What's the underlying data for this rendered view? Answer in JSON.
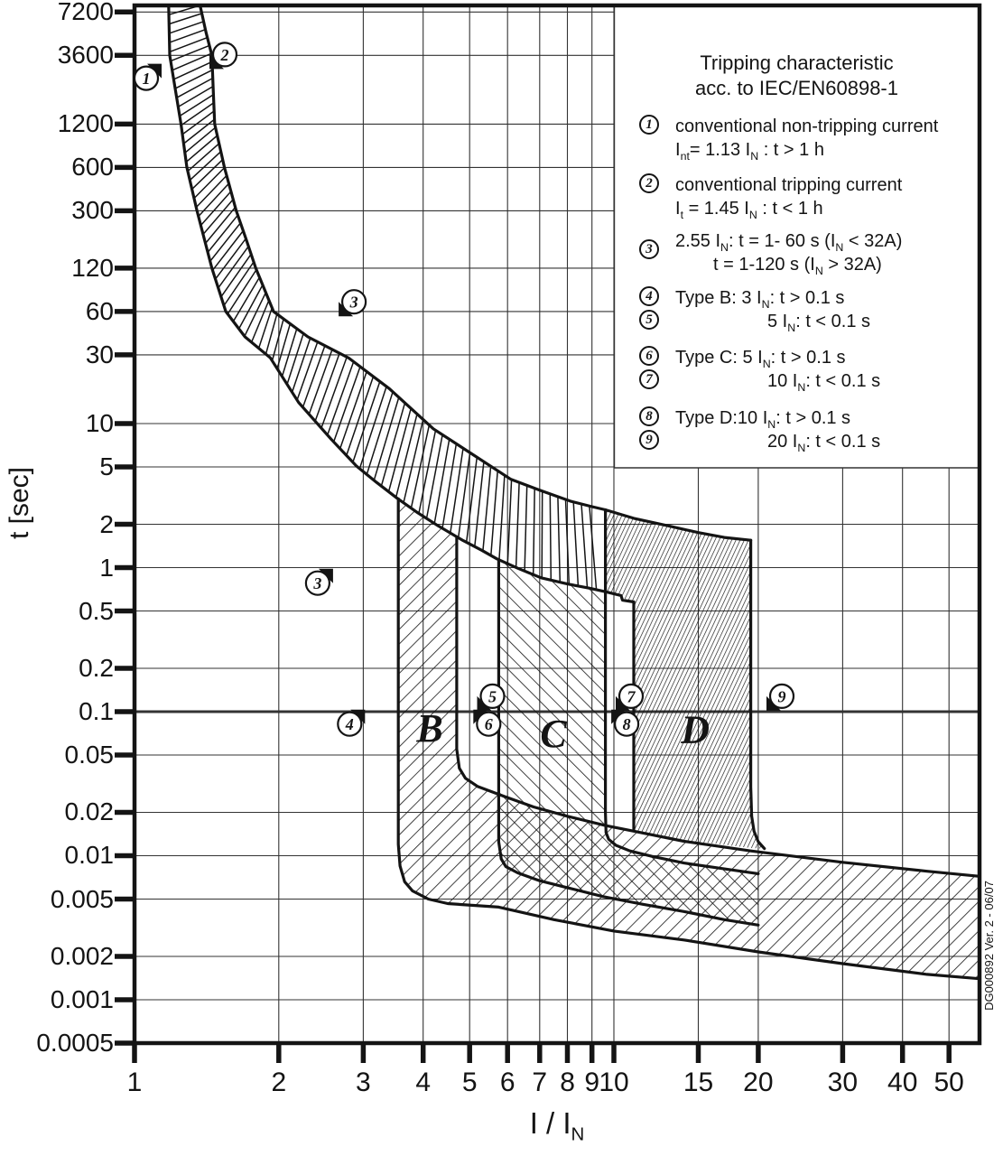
{
  "page": {
    "background": "#ffffff",
    "ink": "#141414",
    "grid_color": "#333333"
  },
  "chart_data": {
    "type": "line",
    "title": "Tripping characteristic acc. to IEC/EN60898-1",
    "xlabel": "I / I_{N}",
    "ylabel": "t [sec]",
    "x_scale": "log",
    "y_scale": "log",
    "x_range": [
      1,
      57.9
    ],
    "t_range": [
      0.0005,
      8000
    ],
    "grid": "on",
    "thick_hline_t": 0.1,
    "x_ticks": [
      {
        "label": "1",
        "v": 1
      },
      {
        "label": "2",
        "v": 2
      },
      {
        "label": "3",
        "v": 3
      },
      {
        "label": "4",
        "v": 4
      },
      {
        "label": "5",
        "v": 5
      },
      {
        "label": "6",
        "v": 6
      },
      {
        "label": "7",
        "v": 7
      },
      {
        "label": "8",
        "v": 8
      },
      {
        "label": "9",
        "v": 9
      },
      {
        "label": "10",
        "v": 10
      },
      {
        "label": "15",
        "v": 15
      },
      {
        "label": "20",
        "v": 20
      },
      {
        "label": "30",
        "v": 30
      },
      {
        "label": "40",
        "v": 40
      },
      {
        "label": "50",
        "v": 50
      }
    ],
    "y_ticks": [
      {
        "label": "7200",
        "v": 7200
      },
      {
        "label": "3600",
        "v": 3600
      },
      {
        "label": "1200",
        "v": 1200
      },
      {
        "label": "600",
        "v": 600
      },
      {
        "label": "300",
        "v": 300
      },
      {
        "label": "120",
        "v": 120
      },
      {
        "label": "60",
        "v": 60
      },
      {
        "label": "30",
        "v": 30
      },
      {
        "label": "10",
        "v": 10
      },
      {
        "label": "5",
        "v": 5
      },
      {
        "label": "2",
        "v": 2
      },
      {
        "label": "1",
        "v": 1
      },
      {
        "label": "0.5",
        "v": 0.5
      },
      {
        "label": "0.2",
        "v": 0.2
      },
      {
        "label": "0.1",
        "v": 0.1
      },
      {
        "label": "0.05",
        "v": 0.05
      },
      {
        "label": "0.02",
        "v": 0.02
      },
      {
        "label": "0.01",
        "v": 0.01
      },
      {
        "label": "0.005",
        "v": 0.005
      },
      {
        "label": "0.002",
        "v": 0.002
      },
      {
        "label": "0.001",
        "v": 0.001
      },
      {
        "label": "0.0005",
        "v": 0.0005
      }
    ],
    "series": {
      "upper_tripping_limit": [
        [
          1.37,
          8000
        ],
        [
          1.41,
          5200
        ],
        [
          1.45,
          3600
        ],
        [
          1.46,
          2000
        ],
        [
          1.47,
          1200
        ],
        [
          1.54,
          600
        ],
        [
          1.63,
          300
        ],
        [
          1.71,
          190
        ],
        [
          1.79,
          120
        ],
        [
          1.95,
          60
        ],
        [
          2.3,
          40
        ],
        [
          2.8,
          28.5
        ],
        [
          3.4,
          17.5
        ],
        [
          4.2,
          9.2
        ],
        [
          5.0,
          6.3
        ],
        [
          6.1,
          4.1
        ],
        [
          7.0,
          3.45
        ],
        [
          8.1,
          2.9
        ],
        [
          9.0,
          2.65
        ],
        [
          9.6,
          2.52
        ],
        [
          11,
          2.2
        ],
        [
          13,
          1.95
        ],
        [
          15,
          1.75
        ],
        [
          17,
          1.62
        ],
        [
          19.3,
          1.55
        ]
      ],
      "lower_tripping_limit": [
        [
          1.178,
          8000
        ],
        [
          1.184,
          3600
        ],
        [
          1.25,
          1200
        ],
        [
          1.286,
          600
        ],
        [
          1.35,
          300
        ],
        [
          1.45,
          120
        ],
        [
          1.55,
          60
        ],
        [
          1.7,
          40
        ],
        [
          1.92,
          28.6
        ],
        [
          2.2,
          14
        ],
        [
          2.57,
          7.8
        ],
        [
          2.9,
          5.1
        ],
        [
          3.2,
          3.9
        ],
        [
          3.53,
          3.03
        ],
        [
          3.9,
          2.4
        ],
        [
          4.3,
          1.95
        ],
        [
          4.85,
          1.54
        ],
        [
          5.3,
          1.32
        ],
        [
          5.7,
          1.15
        ],
        [
          6.3,
          0.99
        ],
        [
          7.05,
          0.85
        ],
        [
          8.0,
          0.77
        ],
        [
          8.9,
          0.72
        ],
        [
          9.6,
          0.68
        ],
        [
          10.35,
          0.64
        ],
        [
          10.42,
          0.595
        ],
        [
          11,
          0.578
        ]
      ],
      "b_min_edge": [
        [
          3.55,
          3.0
        ],
        [
          3.55,
          0.012
        ],
        [
          3.58,
          0.0085
        ],
        [
          3.66,
          0.0066
        ],
        [
          3.8,
          0.0057
        ],
        [
          4.1,
          0.005
        ],
        [
          4.5,
          0.00465
        ],
        [
          5.75,
          0.0044
        ],
        [
          7.5,
          0.0036
        ],
        [
          10,
          0.003
        ],
        [
          14,
          0.0026
        ],
        [
          20,
          0.00215
        ],
        [
          30,
          0.00178
        ],
        [
          45,
          0.0015
        ],
        [
          57.9,
          0.0014
        ]
      ],
      "b_max_edge": [
        [
          4.7,
          1.63
        ],
        [
          4.7,
          0.055
        ],
        [
          4.76,
          0.0405
        ],
        [
          4.9,
          0.0345
        ],
        [
          5.2,
          0.0302
        ],
        [
          5.9,
          0.0258
        ],
        [
          6.8,
          0.0218
        ],
        [
          8,
          0.0188
        ],
        [
          9.6,
          0.0162
        ],
        [
          11,
          0.0148
        ],
        [
          14,
          0.0126
        ],
        [
          19.3,
          0.0108
        ],
        [
          30,
          0.009
        ],
        [
          45,
          0.0078
        ],
        [
          57.9,
          0.0072
        ]
      ],
      "c_min_edge": [
        [
          5.75,
          1.14
        ],
        [
          5.75,
          0.0125
        ],
        [
          5.82,
          0.0095
        ],
        [
          5.95,
          0.0084
        ],
        [
          6.3,
          0.0076
        ],
        [
          7,
          0.0067
        ],
        [
          8,
          0.006
        ],
        [
          9.5,
          0.0052
        ],
        [
          11.5,
          0.0046
        ],
        [
          14,
          0.0041
        ],
        [
          17,
          0.0036
        ],
        [
          20,
          0.0033
        ]
      ],
      "c_max_edge": [
        [
          9.6,
          2.52
        ],
        [
          9.6,
          0.02
        ],
        [
          9.63,
          0.0145
        ],
        [
          9.75,
          0.013
        ],
        [
          10.1,
          0.0118
        ],
        [
          10.8,
          0.0108
        ],
        [
          12,
          0.0099
        ],
        [
          14,
          0.0089
        ],
        [
          17,
          0.0081
        ],
        [
          20,
          0.0075
        ]
      ],
      "d_min_edge": [
        [
          11,
          0.578
        ],
        [
          11,
          0.0149
        ]
      ],
      "d_max_edge": [
        [
          19.3,
          1.55
        ],
        [
          19.3,
          0.03
        ],
        [
          19.38,
          0.0188
        ],
        [
          19.6,
          0.0148
        ],
        [
          20,
          0.0125
        ],
        [
          20.6,
          0.0112
        ]
      ]
    },
    "bands": {
      "b_and_bottom_strip": [
        [
          3.55,
          3.0
        ],
        [
          3.55,
          0.012
        ],
        [
          3.58,
          0.0085
        ],
        [
          3.66,
          0.0066
        ],
        [
          3.8,
          0.0057
        ],
        [
          4.1,
          0.005
        ],
        [
          4.5,
          0.00465
        ],
        [
          5.75,
          0.0044
        ],
        [
          7.5,
          0.0036
        ],
        [
          10,
          0.003
        ],
        [
          14,
          0.0026
        ],
        [
          20,
          0.00215
        ],
        [
          30,
          0.00178
        ],
        [
          45,
          0.0015
        ],
        [
          57.9,
          0.0014
        ],
        [
          57.9,
          0.0072
        ],
        [
          45,
          0.0078
        ],
        [
          30,
          0.009
        ],
        [
          19.3,
          0.0108
        ],
        [
          14,
          0.0126
        ],
        [
          11,
          0.0148
        ],
        [
          9.6,
          0.0162
        ],
        [
          8,
          0.0188
        ],
        [
          6.8,
          0.0218
        ],
        [
          5.9,
          0.0258
        ],
        [
          5.2,
          0.0302
        ],
        [
          4.9,
          0.0345
        ],
        [
          4.76,
          0.0405
        ],
        [
          4.7,
          0.055
        ],
        [
          4.7,
          1.63
        ],
        [
          4.3,
          1.95
        ],
        [
          3.9,
          2.4
        ],
        [
          3.55,
          3.0
        ]
      ],
      "c_band": [
        [
          5.75,
          1.14
        ],
        [
          5.75,
          0.0125
        ],
        [
          5.82,
          0.0095
        ],
        [
          5.95,
          0.0084
        ],
        [
          6.3,
          0.0076
        ],
        [
          7,
          0.0067
        ],
        [
          8,
          0.006
        ],
        [
          9.5,
          0.0052
        ],
        [
          11.5,
          0.0046
        ],
        [
          14,
          0.0041
        ],
        [
          17,
          0.0036
        ],
        [
          20,
          0.0033
        ],
        [
          20,
          0.0075
        ],
        [
          17,
          0.0081
        ],
        [
          14,
          0.0089
        ],
        [
          12,
          0.0099
        ],
        [
          10.8,
          0.0108
        ],
        [
          10.1,
          0.0118
        ],
        [
          9.75,
          0.013
        ],
        [
          9.63,
          0.0145
        ],
        [
          9.6,
          0.02
        ],
        [
          9.6,
          0.68
        ],
        [
          8.9,
          0.72
        ],
        [
          8,
          0.77
        ],
        [
          7.05,
          0.85
        ],
        [
          6.3,
          0.99
        ],
        [
          5.75,
          1.14
        ]
      ],
      "d_band": [
        [
          9.6,
          2.52
        ],
        [
          11,
          2.2
        ],
        [
          13,
          1.95
        ],
        [
          15,
          1.75
        ],
        [
          17,
          1.62
        ],
        [
          19.3,
          1.55
        ],
        [
          19.3,
          0.03
        ],
        [
          19.38,
          0.0188
        ],
        [
          19.6,
          0.0148
        ],
        [
          20,
          0.0125
        ],
        [
          20.6,
          0.0112
        ],
        [
          19.3,
          0.0113
        ],
        [
          16,
          0.0122
        ],
        [
          14,
          0.0127
        ],
        [
          12.5,
          0.0137
        ],
        [
          11,
          0.0149
        ],
        [
          11,
          0.578
        ],
        [
          10.42,
          0.595
        ],
        [
          10.35,
          0.64
        ],
        [
          9.6,
          0.68
        ]
      ]
    },
    "markers": [
      {
        "label": "1",
        "x": 1.058,
        "t": 2500,
        "flag": "ne"
      },
      {
        "label": "2",
        "x": 1.543,
        "t": 3650,
        "flag": "sw"
      },
      {
        "label": "3",
        "x": 2.87,
        "t": 70,
        "flag": "sw"
      },
      {
        "label": "3",
        "x": 2.41,
        "t": 0.78,
        "flag": "ne"
      },
      {
        "label": "4",
        "x": 2.81,
        "t": 0.082,
        "flag": "ne"
      },
      {
        "label": "5",
        "x": 5.58,
        "t": 0.128,
        "flag": "sw"
      },
      {
        "label": "6",
        "x": 5.48,
        "t": 0.082,
        "flag": "nw"
      },
      {
        "label": "7",
        "x": 10.86,
        "t": 0.128,
        "flag": "sw"
      },
      {
        "label": "8",
        "x": 10.63,
        "t": 0.082,
        "flag": "nw"
      },
      {
        "label": "9",
        "x": 22.4,
        "t": 0.128,
        "flag": "sw"
      }
    ],
    "type_labels": [
      {
        "label": "B",
        "x": 4.13,
        "t": 0.077
      },
      {
        "label": "C",
        "x": 7.48,
        "t": 0.0705
      },
      {
        "label": "D",
        "x": 14.78,
        "t": 0.0752
      }
    ],
    "legend": {
      "title_line1": "Tripping characteristic",
      "title_line2": "acc. to IEC/EN60898-1",
      "items": [
        {
          "num": "1",
          "lines": [
            "conventional non-tripping current",
            "I_{nt}= 1.13 I_{N} : t > 1 h"
          ]
        },
        {
          "num": "2",
          "lines": [
            "conventional tripping current",
            "I_{t} = 1.45 I_{N} : t < 1 h"
          ]
        },
        {
          "num": "3",
          "lines": [
            "2.55 I_{N}: t = 1- 60 s (I_{N} < 32A)",
            "t = 1-120 s (I_{N} > 32A)"
          ]
        },
        {
          "num": "4",
          "lines": [
            "Type B: 3 I_{N}: t > 0.1 s"
          ]
        },
        {
          "num": "5",
          "lines": [
            "5 I_{N}: t < 0.1 s"
          ]
        },
        {
          "num": "6",
          "lines": [
            "Type C: 5 I_{N}: t > 0.1 s"
          ]
        },
        {
          "num": "7",
          "lines": [
            "10 I_{N}: t < 0.1 s"
          ]
        },
        {
          "num": "8",
          "lines": [
            "Type D:10 I_{N}: t > 0.1 s"
          ]
        },
        {
          "num": "9",
          "lines": [
            "20 I_{N}: t < 0.1 s"
          ]
        }
      ]
    },
    "watermark": "DG000892 Ver. 2 - 06/07"
  }
}
